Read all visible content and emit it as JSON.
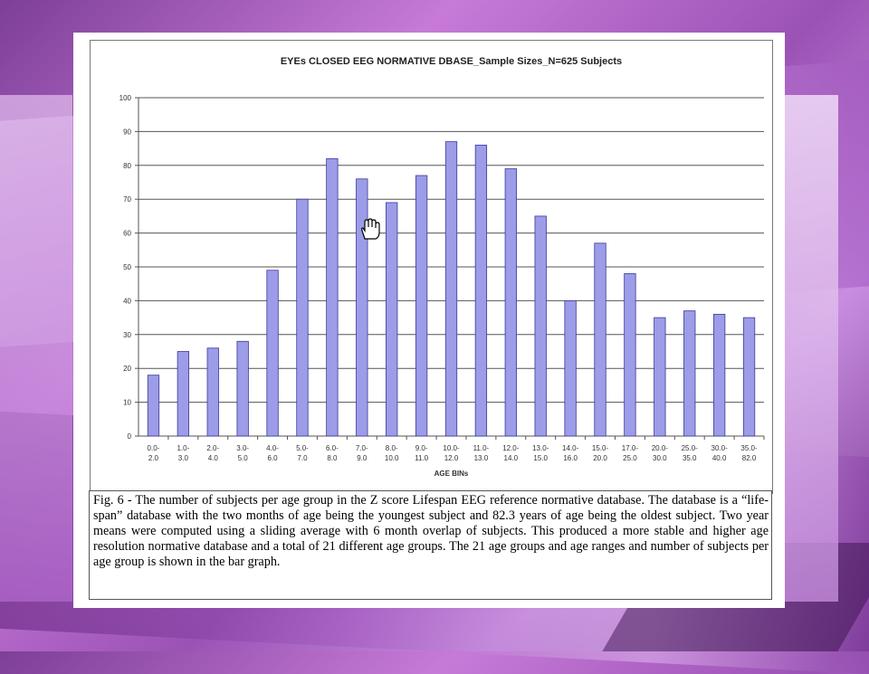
{
  "chart_data": {
    "type": "bar",
    "title": "EYEs CLOSED EEG NORMATIVE DBASE_Sample Sizes_N=625 Subjects",
    "xlabel": "AGE BINs",
    "ylabel": "",
    "ylim": [
      0,
      100
    ],
    "yticks": [
      0,
      10,
      20,
      30,
      40,
      50,
      60,
      70,
      80,
      90,
      100
    ],
    "grid": "horizontal",
    "bar_color": "#9c9ce8",
    "categories": [
      [
        "0.0-",
        "2.0"
      ],
      [
        "1.0-",
        "3.0"
      ],
      [
        "2.0-",
        "4.0"
      ],
      [
        "3.0-",
        "5.0"
      ],
      [
        "4.0-",
        "6.0"
      ],
      [
        "5.0-",
        "7.0"
      ],
      [
        "6.0-",
        "8.0"
      ],
      [
        "7.0-",
        "9.0"
      ],
      [
        "8.0-",
        "10.0"
      ],
      [
        "9.0-",
        "11.0"
      ],
      [
        "10.0-",
        "12.0"
      ],
      [
        "11.0-",
        "13.0"
      ],
      [
        "12.0-",
        "14.0"
      ],
      [
        "13.0-",
        "15.0"
      ],
      [
        "14.0-",
        "16.0"
      ],
      [
        "15.0-",
        "20.0"
      ],
      [
        "17.0-",
        "25.0"
      ],
      [
        "20.0-",
        "30.0"
      ],
      [
        "25.0-",
        "35.0"
      ],
      [
        "30.0-",
        "40.0"
      ],
      [
        "35.0-",
        "82.0"
      ]
    ],
    "values": [
      18,
      25,
      26,
      28,
      49,
      70,
      82,
      76,
      69,
      77,
      87,
      86,
      79,
      65,
      40,
      57,
      48,
      35,
      37,
      36,
      35
    ]
  },
  "caption": "Fig. 6 - The number of subjects per age group in the Z score Lifespan EEG reference normative database. The database is a “life-span” database with the two months of age being the youngest subject and 82.3 years of age being the oldest subject. Two year means were computed using a sliding average with 6 month overlap of subjects.   This produced a more stable and higher age resolution normative database and a total of 21 different age groups.   The 21 age groups and age ranges and number of subjects per age group is shown in the bar graph.",
  "cursor_icon": "hand-pointer-icon"
}
